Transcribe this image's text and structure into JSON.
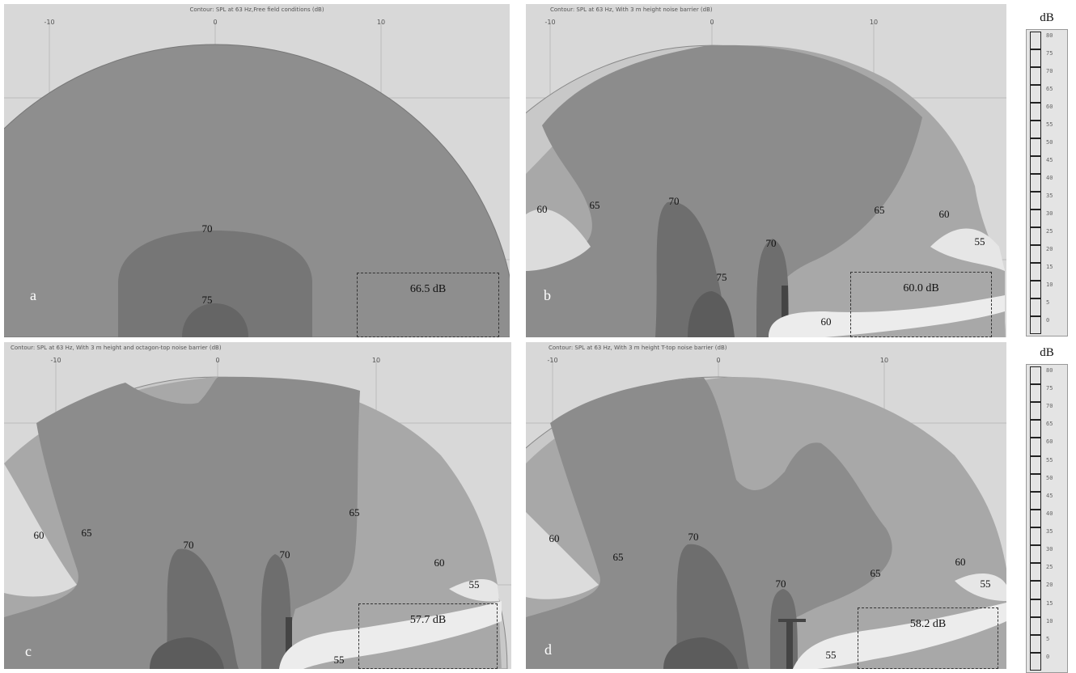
{
  "panels": [
    {
      "letter": "a",
      "title": "Contour: SPL at 63 Hz,Free field conditions (dB)",
      "ticks": [
        "-10",
        "0",
        "10"
      ],
      "result": "66.5 dB",
      "labels": [
        "70",
        "75"
      ]
    },
    {
      "letter": "b",
      "title": "Contour: SPL at 63 Hz, With 3 m height noise barrier (dB)",
      "ticks": [
        "-10",
        "0",
        "10"
      ],
      "result": "60.0 dB",
      "labels": [
        "60",
        "65",
        "70",
        "70",
        "75",
        "65",
        "60",
        "55",
        "60"
      ]
    },
    {
      "letter": "c",
      "title": "Contour: SPL at 63 Hz, With 3 m height and octagon-top noise barrier (dB)",
      "ticks": [
        "-10",
        "0",
        "10"
      ],
      "result": "57.7 dB",
      "labels": [
        "60",
        "65",
        "70",
        "70",
        "65",
        "60",
        "55",
        "55"
      ]
    },
    {
      "letter": "d",
      "title": "Contour: SPL at 63 Hz, With 3 m height T-top noise barrier (dB)",
      "ticks": [
        "-10",
        "0",
        "10"
      ],
      "result": "58.2 dB",
      "labels": [
        "60",
        "65",
        "70",
        "70",
        "65",
        "60",
        "55",
        "55"
      ]
    }
  ],
  "scales": [
    {
      "unit": "dB",
      "ticks": [
        "80",
        "75",
        "70",
        "65",
        "60",
        "55",
        "50",
        "45",
        "40",
        "35",
        "30",
        "25",
        "20",
        "15",
        "10",
        "5",
        "0"
      ]
    },
    {
      "unit": "dB",
      "ticks": [
        "80",
        "75",
        "70",
        "65",
        "60",
        "55",
        "50",
        "45",
        "40",
        "35",
        "30",
        "25",
        "20",
        "15",
        "10",
        "5",
        "0"
      ]
    }
  ]
}
